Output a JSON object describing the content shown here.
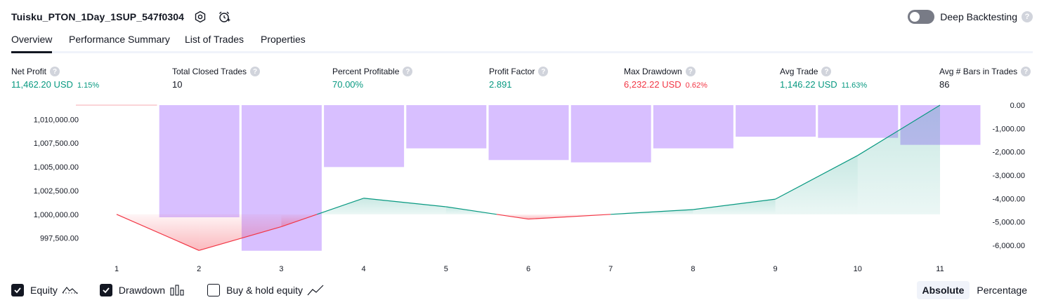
{
  "strategy": {
    "title": "Tuisku_PTON_1Day_1SUP_547f0304",
    "icons": [
      "settings-icon",
      "alarm-add-icon"
    ]
  },
  "deep_backtesting": {
    "label": "Deep Backtesting",
    "enabled": false,
    "help": "?"
  },
  "tabs": [
    {
      "label": "Overview",
      "active": true
    },
    {
      "label": "Performance Summary",
      "active": false
    },
    {
      "label": "List of Trades",
      "active": false
    },
    {
      "label": "Properties",
      "active": false
    }
  ],
  "metrics": [
    {
      "label": "Net Profit",
      "value": "11,462.20 USD",
      "pct": "1.15%",
      "tone": "green"
    },
    {
      "label": "Total Closed Trades",
      "value": "10",
      "pct": "",
      "tone": "dark"
    },
    {
      "label": "Percent Profitable",
      "value": "70.00%",
      "pct": "",
      "tone": "green"
    },
    {
      "label": "Profit Factor",
      "value": "2.891",
      "pct": "",
      "tone": "green"
    },
    {
      "label": "Max Drawdown",
      "value": "6,232.22 USD",
      "pct": "0.62%",
      "tone": "red"
    },
    {
      "label": "Avg Trade",
      "value": "1,146.22 USD",
      "pct": "11.63%",
      "tone": "green"
    },
    {
      "label": "Avg # Bars in Trades",
      "value": "86",
      "pct": "",
      "tone": "dark"
    }
  ],
  "chart_data": {
    "type": "line",
    "x": [
      1,
      2,
      3,
      4,
      5,
      6,
      7,
      8,
      9,
      10,
      11
    ],
    "x_tick_labels": [
      "1",
      "2",
      "3",
      "4",
      "5",
      "6",
      "7",
      "8",
      "9",
      "10",
      "11"
    ],
    "left_axis": {
      "ticks": [
        1010000,
        1007500,
        1005000,
        1002500,
        1000000,
        997500
      ],
      "tick_labels": [
        "1,010,000.00",
        "1,007,500.00",
        "1,005,000.00",
        "1,002,500.00",
        "1,000,000.00",
        "997,500.00"
      ],
      "range": [
        996000,
        1011500
      ]
    },
    "right_axis": {
      "ticks": [
        0,
        -1000,
        -2000,
        -3000,
        -4000,
        -5000,
        -6000
      ],
      "tick_labels": [
        "0.00",
        "-1,000.00",
        "-2,000.00",
        "-3,000.00",
        "-4,000.00",
        "-5,000.00",
        "-6,000.00"
      ],
      "range": [
        -6300,
        0
      ]
    },
    "series": [
      {
        "name": "Equity",
        "axis": "left",
        "values": [
          1000000,
          996200,
          998700,
          1001700,
          1000800,
          999500,
          1000000,
          1000500,
          1001600,
          1006200,
          1011500
        ]
      },
      {
        "name": "Drawdown",
        "axis": "right",
        "type": "bar",
        "values": [
          0,
          -4800,
          -6232,
          -2650,
          -1850,
          -2350,
          -2450,
          -1850,
          -1350,
          -1400,
          -1700
        ]
      }
    ],
    "initial_equity": 1000000,
    "colors": {
      "equity_up": "#089981",
      "equity_down": "#f23645",
      "drawdown": "#d1b4ff",
      "grid": "#f0f3fa"
    },
    "grid": false
  },
  "legend": [
    {
      "label": "Equity",
      "checked": true,
      "icon": "equity-line-icon"
    },
    {
      "label": "Drawdown",
      "checked": true,
      "icon": "drawdown-bars-icon"
    },
    {
      "label": "Buy & hold equity",
      "checked": false,
      "icon": "trend-line-icon"
    }
  ],
  "modes": [
    {
      "label": "Absolute",
      "active": true
    },
    {
      "label": "Percentage",
      "active": false
    }
  ]
}
